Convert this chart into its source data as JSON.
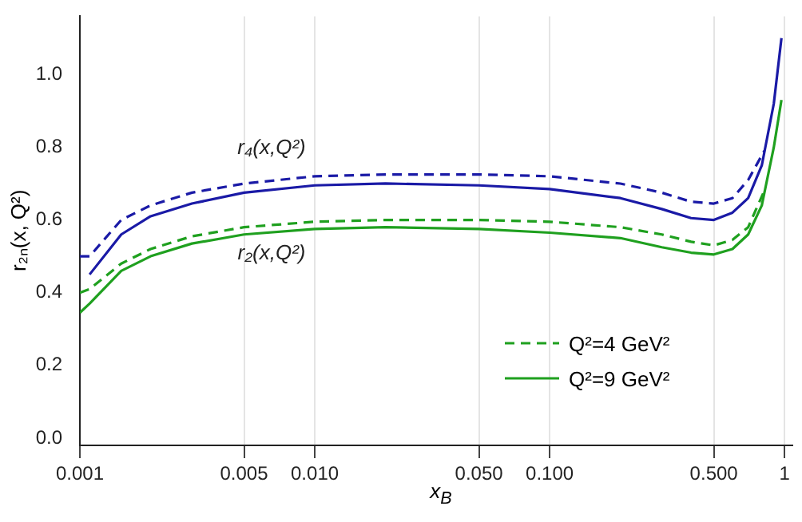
{
  "chart_data": {
    "type": "line",
    "xlabel": "x$_{B}$",
    "ylabel": "r₂ₙ(x, Q²)",
    "log": "x",
    "xlim": [
      0.001,
      1.08
    ],
    "ylim": [
      -0.02,
      1.16
    ],
    "xticks": [
      {
        "value": 0.001,
        "label": "0.001"
      },
      {
        "value": 0.005,
        "label": "0.005"
      },
      {
        "value": 0.01,
        "label": "0.010"
      },
      {
        "value": 0.05,
        "label": "0.050"
      },
      {
        "value": 0.1,
        "label": "0.100"
      },
      {
        "value": 0.5,
        "label": "0.500"
      },
      1
    ],
    "yticks": [
      {
        "value": 0,
        "label": "0.0"
      },
      {
        "value": 0.2,
        "label": "0.2"
      },
      {
        "value": 0.4,
        "label": "0.4"
      },
      {
        "value": 0.6,
        "label": "0.6"
      },
      {
        "value": 0.8,
        "label": "0.8"
      },
      {
        "value": 1,
        "label": "1.0"
      }
    ],
    "grid": "x",
    "legend": "bottom right",
    "marker": "none",
    "annotations": [
      "r₄(x,Q²)",
      "r₂(x,Q²)"
    ],
    "series": [
      {
        "color": "#1a1aa6",
        "line_style": "dashed",
        "x": [
          0.001,
          0.0011,
          0.0015,
          0.002,
          0.003,
          0.005,
          0.01,
          0.02,
          0.05,
          0.1,
          0.2,
          0.3,
          0.4,
          0.5,
          0.6,
          0.7,
          0.82
        ],
        "values": [
          0.5,
          0.5,
          0.6,
          0.64,
          0.675,
          0.7,
          0.72,
          0.725,
          0.725,
          0.72,
          0.7,
          0.675,
          0.65,
          0.645,
          0.66,
          0.71,
          0.79
        ]
      },
      {
        "color": "#1a1aa6",
        "line_style": "solid",
        "x": [
          0.0011,
          0.0015,
          0.002,
          0.003,
          0.005,
          0.01,
          0.02,
          0.05,
          0.1,
          0.2,
          0.3,
          0.4,
          0.5,
          0.6,
          0.7,
          0.8,
          0.9,
          0.97
        ],
        "values": [
          0.45,
          0.56,
          0.61,
          0.645,
          0.675,
          0.695,
          0.7,
          0.695,
          0.685,
          0.66,
          0.63,
          0.605,
          0.6,
          0.62,
          0.66,
          0.75,
          0.92,
          1.1
        ]
      },
      {
        "name": "Q²=4 GeV²",
        "color": "#1fa01f",
        "line_style": "dashed",
        "x": [
          0.001,
          0.0011,
          0.0015,
          0.002,
          0.003,
          0.005,
          0.01,
          0.02,
          0.05,
          0.1,
          0.2,
          0.3,
          0.4,
          0.5,
          0.6,
          0.7,
          0.82
        ],
        "values": [
          0.4,
          0.41,
          0.48,
          0.52,
          0.555,
          0.58,
          0.595,
          0.6,
          0.6,
          0.595,
          0.58,
          0.56,
          0.54,
          0.53,
          0.545,
          0.58,
          0.68
        ]
      },
      {
        "name": "Q²=9 GeV²",
        "color": "#1fa01f",
        "line_style": "solid",
        "x": [
          0.001,
          0.0011,
          0.0015,
          0.002,
          0.003,
          0.005,
          0.01,
          0.02,
          0.05,
          0.1,
          0.2,
          0.3,
          0.4,
          0.5,
          0.6,
          0.7,
          0.8,
          0.9,
          0.97
        ],
        "values": [
          0.345,
          0.37,
          0.46,
          0.5,
          0.535,
          0.56,
          0.575,
          0.58,
          0.575,
          0.565,
          0.55,
          0.525,
          0.51,
          0.505,
          0.52,
          0.56,
          0.64,
          0.8,
          0.93
        ]
      }
    ]
  }
}
